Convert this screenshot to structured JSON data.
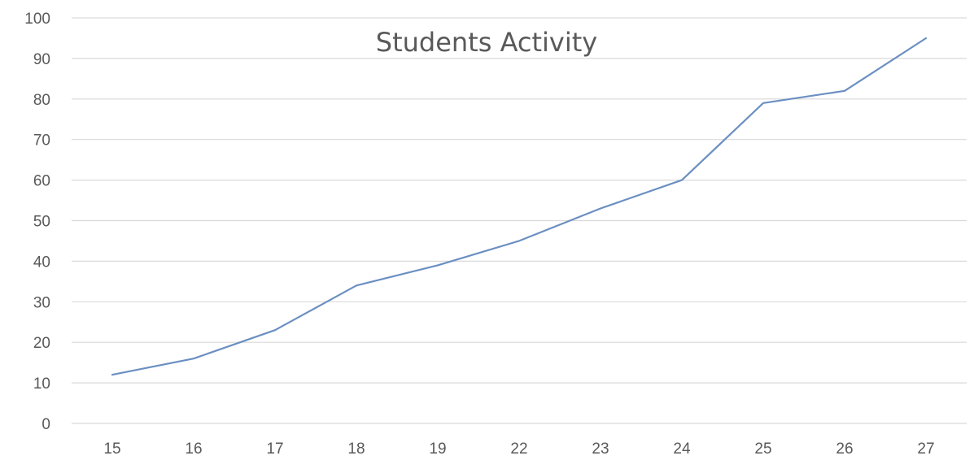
{
  "chart_data": {
    "type": "line",
    "title": "Students Activity",
    "xlabel": "",
    "ylabel": "",
    "categories": [
      "15",
      "16",
      "17",
      "18",
      "19",
      "22",
      "23",
      "24",
      "25",
      "26",
      "27"
    ],
    "series": [
      {
        "values": [
          12,
          16,
          23,
          34,
          39,
          45,
          53,
          60,
          79,
          82,
          95
        ],
        "color": "#6b8fc2"
      }
    ],
    "ylim": [
      0,
      100
    ],
    "yticks": [
      0,
      10,
      20,
      30,
      40,
      50,
      60,
      70,
      80,
      90,
      100
    ],
    "grid": true,
    "legend": "none"
  }
}
